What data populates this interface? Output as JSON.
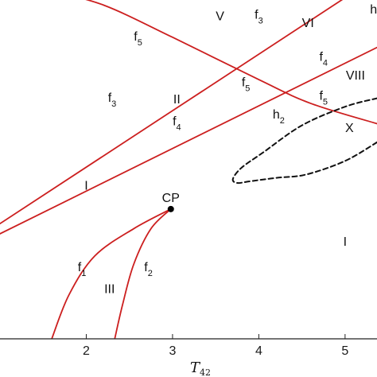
{
  "chart_data": {
    "type": "line",
    "xlabel": "T",
    "xlabel_sub": "42",
    "xlim": [
      1.0,
      5.37
    ],
    "ylim": [
      0,
      10
    ],
    "x_ticks": [
      "2",
      "3",
      "4",
      "5"
    ],
    "grid": false,
    "curves": [
      {
        "id": "f5_upper",
        "color": "#cc1f1f",
        "style": "solid",
        "points": [
          [
            1.55,
            10.3
          ],
          [
            2.2,
            9.85
          ],
          [
            3.0,
            8.9
          ],
          [
            4.0,
            7.65
          ],
          [
            4.6,
            6.95
          ],
          [
            5.37,
            6.35
          ]
        ]
      },
      {
        "id": "f3",
        "color": "#cc1f1f",
        "style": "solid",
        "points": [
          [
            1.0,
            3.4
          ],
          [
            5.05,
            10.15
          ]
        ]
      },
      {
        "id": "f4",
        "color": "#cc1f1f",
        "style": "solid",
        "points": [
          [
            1.0,
            3.1
          ],
          [
            5.37,
            8.6
          ]
        ]
      },
      {
        "id": "f1",
        "color": "#cc1f1f",
        "style": "solid",
        "points": [
          [
            2.98,
            3.83
          ],
          [
            2.55,
            3.25
          ],
          [
            2.1,
            2.45
          ],
          [
            1.8,
            1.3
          ],
          [
            1.6,
            0.0
          ]
        ]
      },
      {
        "id": "f2",
        "color": "#cc1f1f",
        "style": "solid",
        "points": [
          [
            2.98,
            3.83
          ],
          [
            2.75,
            3.25
          ],
          [
            2.55,
            2.2
          ],
          [
            2.42,
            1.0
          ],
          [
            2.33,
            0.0
          ]
        ]
      },
      {
        "id": "h2",
        "color": "#111111",
        "style": "dashed",
        "points": [
          [
            5.37,
            5.8
          ],
          [
            5.0,
            5.25
          ],
          [
            4.55,
            4.85
          ],
          [
            4.2,
            4.75
          ],
          [
            3.9,
            4.65
          ],
          [
            3.75,
            4.6
          ],
          [
            3.7,
            4.72
          ],
          [
            3.8,
            5.05
          ],
          [
            4.05,
            5.5
          ],
          [
            4.5,
            6.3
          ],
          [
            5.0,
            6.85
          ],
          [
            5.37,
            7.1
          ]
        ]
      }
    ],
    "point_marker": {
      "label": "CP",
      "x": 2.98,
      "y": 3.83
    },
    "regions": [
      {
        "text": "I",
        "x": 2.0,
        "y": 4.4
      },
      {
        "text": "I",
        "x": 5.0,
        "y": 2.75
      },
      {
        "text": "II",
        "x": 3.05,
        "y": 6.95
      },
      {
        "text": "III",
        "x": 2.27,
        "y": 1.35
      },
      {
        "text": "V",
        "x": 3.55,
        "y": 9.4
      },
      {
        "text": "VI",
        "x": 4.57,
        "y": 9.2
      },
      {
        "text": "VIII",
        "x": 5.12,
        "y": 7.65
      },
      {
        "text": "X",
        "x": 5.05,
        "y": 6.1
      }
    ],
    "curve_labels": [
      {
        "text": "f",
        "sub": "5",
        "x": 2.6,
        "y": 8.8
      },
      {
        "text": "f",
        "sub": "3",
        "x": 4.0,
        "y": 9.45
      },
      {
        "text": "f",
        "sub": "4",
        "x": 4.75,
        "y": 8.2
      },
      {
        "text": "f",
        "sub": "3",
        "x": 2.3,
        "y": 7.0
      },
      {
        "text": "f",
        "sub": "5",
        "x": 3.85,
        "y": 7.45
      },
      {
        "text": "f",
        "sub": "5",
        "x": 4.75,
        "y": 7.05
      },
      {
        "text": "f",
        "sub": "4",
        "x": 3.05,
        "y": 6.3
      },
      {
        "text": "h",
        "sub": "2",
        "x": 4.23,
        "y": 6.5
      },
      {
        "text": "h",
        "sub": "",
        "x": 5.33,
        "y": 9.6
      },
      {
        "text": "f",
        "sub": "1",
        "x": 1.95,
        "y": 2.0
      },
      {
        "text": "f",
        "sub": "2",
        "x": 2.72,
        "y": 2.0
      }
    ]
  }
}
